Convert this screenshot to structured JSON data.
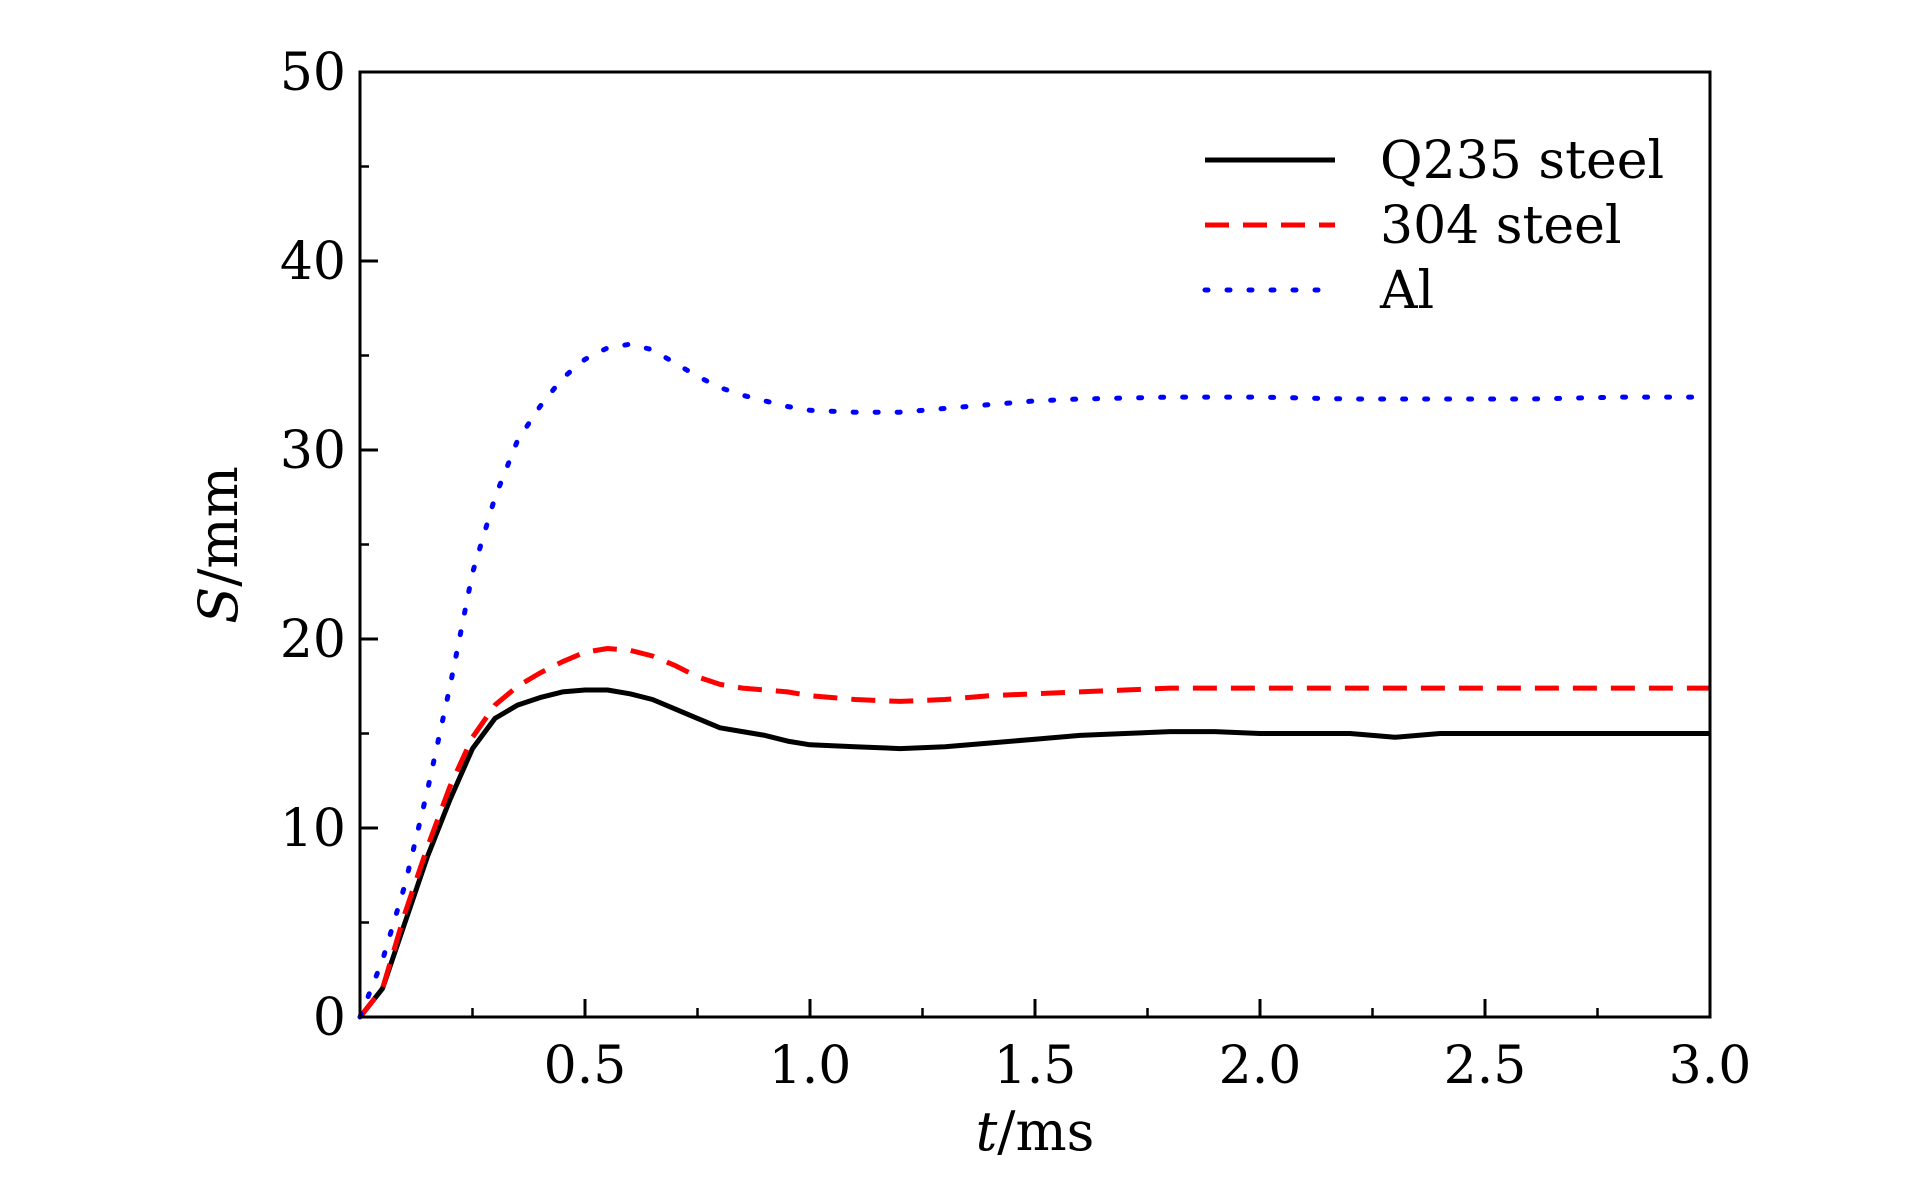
{
  "chart_data": {
    "type": "line",
    "xlabel_italic": "t",
    "xlabel_unit": "/ms",
    "ylabel_italic": "S",
    "ylabel_unit": "/mm",
    "xlim": [
      0,
      3.0
    ],
    "ylim": [
      0,
      50
    ],
    "x_ticks": [
      "0.5",
      "1.0",
      "1.5",
      "2.0",
      "2.5",
      "3.0"
    ],
    "x_tick_values": [
      0.5,
      1.0,
      1.5,
      2.0,
      2.5,
      3.0
    ],
    "y_ticks": [
      "0",
      "10",
      "20",
      "30",
      "40",
      "50"
    ],
    "y_tick_values": [
      0,
      10,
      20,
      30,
      40,
      50
    ],
    "legend_position": "top-right",
    "grid": false,
    "series": [
      {
        "name": "Q235 steel",
        "color": "#000000",
        "style": "solid",
        "points": [
          [
            0,
            0
          ],
          [
            0.05,
            1.5
          ],
          [
            0.1,
            5
          ],
          [
            0.15,
            8.5
          ],
          [
            0.2,
            11.5
          ],
          [
            0.25,
            14.2
          ],
          [
            0.3,
            15.8
          ],
          [
            0.35,
            16.5
          ],
          [
            0.4,
            16.9
          ],
          [
            0.45,
            17.2
          ],
          [
            0.5,
            17.3
          ],
          [
            0.55,
            17.3
          ],
          [
            0.6,
            17.1
          ],
          [
            0.65,
            16.8
          ],
          [
            0.7,
            16.3
          ],
          [
            0.75,
            15.8
          ],
          [
            0.8,
            15.3
          ],
          [
            0.85,
            15.1
          ],
          [
            0.9,
            14.9
          ],
          [
            0.95,
            14.6
          ],
          [
            1.0,
            14.4
          ],
          [
            1.1,
            14.3
          ],
          [
            1.2,
            14.2
          ],
          [
            1.3,
            14.3
          ],
          [
            1.4,
            14.5
          ],
          [
            1.5,
            14.7
          ],
          [
            1.6,
            14.9
          ],
          [
            1.7,
            15.0
          ],
          [
            1.8,
            15.1
          ],
          [
            1.9,
            15.1
          ],
          [
            2.0,
            15.0
          ],
          [
            2.2,
            15.0
          ],
          [
            2.3,
            14.8
          ],
          [
            2.4,
            15.0
          ],
          [
            2.6,
            15.0
          ],
          [
            2.8,
            15.0
          ],
          [
            3.0,
            15.0
          ]
        ]
      },
      {
        "name": "304 steel",
        "color": "#ff0000",
        "style": "dashed",
        "points": [
          [
            0,
            0
          ],
          [
            0.05,
            1.5
          ],
          [
            0.1,
            5.5
          ],
          [
            0.15,
            9
          ],
          [
            0.2,
            12.2
          ],
          [
            0.25,
            14.8
          ],
          [
            0.3,
            16.5
          ],
          [
            0.35,
            17.5
          ],
          [
            0.4,
            18.2
          ],
          [
            0.45,
            18.8
          ],
          [
            0.5,
            19.3
          ],
          [
            0.55,
            19.5
          ],
          [
            0.6,
            19.4
          ],
          [
            0.65,
            19.1
          ],
          [
            0.7,
            18.6
          ],
          [
            0.75,
            18.0
          ],
          [
            0.8,
            17.6
          ],
          [
            0.85,
            17.4
          ],
          [
            0.9,
            17.3
          ],
          [
            0.95,
            17.2
          ],
          [
            1.0,
            17.0
          ],
          [
            1.1,
            16.8
          ],
          [
            1.2,
            16.7
          ],
          [
            1.3,
            16.8
          ],
          [
            1.4,
            17.0
          ],
          [
            1.5,
            17.1
          ],
          [
            1.6,
            17.2
          ],
          [
            1.7,
            17.3
          ],
          [
            1.8,
            17.4
          ],
          [
            1.9,
            17.4
          ],
          [
            2.0,
            17.4
          ],
          [
            2.2,
            17.4
          ],
          [
            2.4,
            17.4
          ],
          [
            2.6,
            17.4
          ],
          [
            2.8,
            17.4
          ],
          [
            3.0,
            17.4
          ]
        ]
      },
      {
        "name": "Al",
        "color": "#0000ff",
        "style": "dotted",
        "points": [
          [
            0,
            0
          ],
          [
            0.05,
            3
          ],
          [
            0.1,
            7
          ],
          [
            0.15,
            12
          ],
          [
            0.2,
            17.5
          ],
          [
            0.25,
            23.5
          ],
          [
            0.3,
            27.5
          ],
          [
            0.35,
            30.5
          ],
          [
            0.4,
            32.3
          ],
          [
            0.45,
            33.8
          ],
          [
            0.5,
            34.8
          ],
          [
            0.55,
            35.4
          ],
          [
            0.6,
            35.6
          ],
          [
            0.65,
            35.3
          ],
          [
            0.7,
            34.6
          ],
          [
            0.75,
            33.9
          ],
          [
            0.8,
            33.3
          ],
          [
            0.85,
            32.9
          ],
          [
            0.9,
            32.6
          ],
          [
            0.95,
            32.3
          ],
          [
            1.0,
            32.1
          ],
          [
            1.1,
            32.0
          ],
          [
            1.2,
            32.0
          ],
          [
            1.3,
            32.2
          ],
          [
            1.4,
            32.4
          ],
          [
            1.5,
            32.6
          ],
          [
            1.6,
            32.7
          ],
          [
            1.8,
            32.8
          ],
          [
            2.0,
            32.8
          ],
          [
            2.2,
            32.7
          ],
          [
            2.4,
            32.7
          ],
          [
            2.6,
            32.7
          ],
          [
            2.8,
            32.8
          ],
          [
            3.0,
            32.8
          ]
        ]
      }
    ]
  }
}
